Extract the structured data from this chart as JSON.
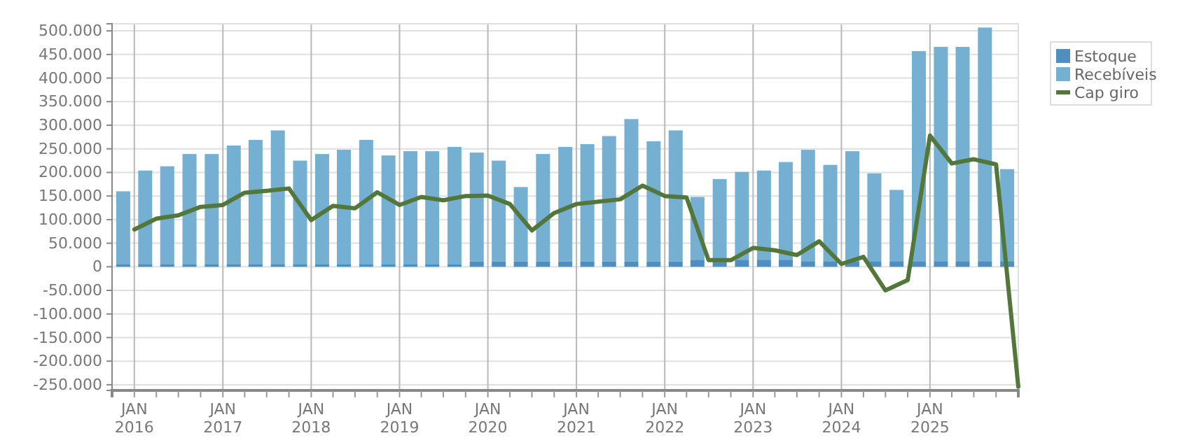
{
  "chart_data": {
    "type": "bar",
    "stacked": true,
    "xlim": [
      "2015-10-01",
      "2026-01-01"
    ],
    "xticks": [
      {
        "value": "2016-01-01",
        "label": "JAN 2016"
      },
      {
        "value": "2016-04-01",
        "label": null
      },
      {
        "value": "2016-07-01",
        "label": null
      },
      {
        "value": "2016-10-01",
        "label": null
      },
      {
        "value": "2017-01-01",
        "label": "JAN 2017"
      },
      {
        "value": "2017-04-01",
        "label": null
      },
      {
        "value": "2017-07-01",
        "label": null
      },
      {
        "value": "2017-10-01",
        "label": null
      },
      {
        "value": "2018-01-01",
        "label": "JAN 2018"
      },
      {
        "value": "2018-04-01",
        "label": null
      },
      {
        "value": "2018-07-01",
        "label": null
      },
      {
        "value": "2018-10-01",
        "label": null
      },
      {
        "value": "2019-01-01",
        "label": "JAN 2019"
      },
      {
        "value": "2019-04-01",
        "label": null
      },
      {
        "value": "2019-07-01",
        "label": null
      },
      {
        "value": "2019-10-01",
        "label": null
      },
      {
        "value": "2020-01-01",
        "label": "JAN 2020"
      },
      {
        "value": "2020-04-01",
        "label": null
      },
      {
        "value": "2020-07-01",
        "label": null
      },
      {
        "value": "2020-10-01",
        "label": null
      },
      {
        "value": "2021-01-01",
        "label": "JAN 2021"
      },
      {
        "value": "2021-04-01",
        "label": null
      },
      {
        "value": "2021-07-01",
        "label": null
      },
      {
        "value": "2021-10-01",
        "label": null
      },
      {
        "value": "2022-01-01",
        "label": "JAN 2022"
      },
      {
        "value": "2022-04-01",
        "label": null
      },
      {
        "value": "2022-07-01",
        "label": null
      },
      {
        "value": "2022-10-01",
        "label": null
      },
      {
        "value": "2023-01-01",
        "label": "JAN 2023"
      },
      {
        "value": "2023-04-01",
        "label": null
      },
      {
        "value": "2023-07-01",
        "label": null
      },
      {
        "value": "2023-10-01",
        "label": null
      },
      {
        "value": "2024-01-01",
        "label": "JAN 2024"
      },
      {
        "value": "2024-04-01",
        "label": null
      },
      {
        "value": "2024-07-01",
        "label": null
      },
      {
        "value": "2024-10-01",
        "label": null
      },
      {
        "value": "2025-01-01",
        "label": "JAN 2025"
      },
      {
        "value": "2025-04-01",
        "label": null
      },
      {
        "value": "2025-07-01",
        "label": null
      },
      {
        "value": "2025-10-01",
        "label": null
      }
    ],
    "ylim": [
      -262000,
      515000
    ],
    "yticks": [
      {
        "value": -250000,
        "label": "-250.000"
      },
      {
        "value": -200000,
        "label": "-200.000"
      },
      {
        "value": -150000,
        "label": "-150.000"
      },
      {
        "value": -100000,
        "label": "-100.000"
      },
      {
        "value": -50000,
        "label": "-50.000"
      },
      {
        "value": 0,
        "label": "0"
      },
      {
        "value": 50000,
        "label": "50.000"
      },
      {
        "value": 100000,
        "label": "100.000"
      },
      {
        "value": 150000,
        "label": "150.000"
      },
      {
        "value": 200000,
        "label": "200.000"
      },
      {
        "value": 250000,
        "label": "250.000"
      },
      {
        "value": 300000,
        "label": "300.000"
      },
      {
        "value": 350000,
        "label": "350.000"
      },
      {
        "value": 400000,
        "label": "400.000"
      },
      {
        "value": 450000,
        "label": "450.000"
      },
      {
        "value": 500000,
        "label": "500.000"
      }
    ],
    "grid": true,
    "legend": "right",
    "series": [
      {
        "name": "Estoque",
        "color": "#4f8fc0",
        "x": [
          "2015-11-16",
          "2016-02-15",
          "2016-05-16",
          "2016-08-16",
          "2016-11-16",
          "2017-02-15",
          "2017-05-16",
          "2017-08-16",
          "2017-11-16",
          "2018-02-15",
          "2018-05-16",
          "2018-08-16",
          "2018-11-16",
          "2019-02-15",
          "2019-05-16",
          "2019-08-16",
          "2019-11-16",
          "2020-02-15",
          "2020-05-16",
          "2020-08-16",
          "2020-11-16",
          "2021-02-15",
          "2021-05-16",
          "2021-08-16",
          "2021-11-16",
          "2022-02-15",
          "2022-05-16",
          "2022-08-16",
          "2022-11-16",
          "2023-02-15",
          "2023-05-16",
          "2023-08-16",
          "2023-11-16",
          "2024-02-15",
          "2024-05-16",
          "2024-08-16",
          "2024-11-16",
          "2025-02-15",
          "2025-05-16",
          "2025-08-16",
          "2025-11-16"
        ],
        "values": [
          6000,
          6000,
          6000,
          6000,
          6000,
          6000,
          6000,
          6000,
          6000,
          6000,
          6000,
          6000,
          6000,
          6000,
          6000,
          6000,
          11000,
          11000,
          11000,
          11000,
          11000,
          11000,
          11000,
          11000,
          11000,
          11000,
          15000,
          15000,
          15000,
          15000,
          15000,
          12000,
          12000,
          12000,
          12000,
          12000,
          12000,
          12000,
          12000,
          12000,
          12000
        ]
      },
      {
        "name": "Recebíveis",
        "color": "#75afd2",
        "x": [
          "2015-11-16",
          "2016-02-15",
          "2016-05-16",
          "2016-08-16",
          "2016-11-16",
          "2017-02-15",
          "2017-05-16",
          "2017-08-16",
          "2017-11-16",
          "2018-02-15",
          "2018-05-16",
          "2018-08-16",
          "2018-11-16",
          "2019-02-15",
          "2019-05-16",
          "2019-08-16",
          "2019-11-16",
          "2020-02-15",
          "2020-05-16",
          "2020-08-16",
          "2020-11-16",
          "2021-02-15",
          "2021-05-16",
          "2021-08-16",
          "2021-11-16",
          "2022-02-15",
          "2022-05-16",
          "2022-08-16",
          "2022-11-16",
          "2023-02-15",
          "2023-05-16",
          "2023-08-16",
          "2023-11-16",
          "2024-02-15",
          "2024-05-16",
          "2024-08-16",
          "2024-11-16",
          "2025-02-15",
          "2025-05-16",
          "2025-08-16",
          "2025-11-16"
        ],
        "values": [
          154000,
          198000,
          207000,
          233000,
          233000,
          251000,
          263000,
          283000,
          219000,
          233000,
          242000,
          263000,
          230000,
          239000,
          239000,
          248000,
          231000,
          214000,
          158000,
          228000,
          243000,
          249000,
          266000,
          302000,
          255000,
          278000,
          133000,
          171000,
          186000,
          189000,
          207000,
          236000,
          204000,
          233000,
          186000,
          151000,
          445000,
          454000,
          454000,
          495000,
          195000
        ]
      },
      {
        "name": "Cap giro",
        "type": "line",
        "color": "#53763a",
        "x": [
          "2016-01-01",
          "2016-04-01",
          "2016-07-01",
          "2016-10-01",
          "2017-01-01",
          "2017-04-01",
          "2017-07-01",
          "2017-10-01",
          "2018-01-01",
          "2018-04-01",
          "2018-07-01",
          "2018-10-01",
          "2019-01-01",
          "2019-04-01",
          "2019-07-01",
          "2019-10-01",
          "2020-01-01",
          "2020-04-01",
          "2020-07-01",
          "2020-10-01",
          "2021-01-01",
          "2021-04-01",
          "2021-07-01",
          "2021-10-01",
          "2022-01-01",
          "2022-04-01",
          "2022-07-01",
          "2022-10-01",
          "2023-01-01",
          "2023-04-01",
          "2023-07-01",
          "2023-10-01",
          "2024-01-01",
          "2024-04-01",
          "2024-07-01",
          "2024-10-01",
          "2025-01-01",
          "2025-04-01",
          "2025-07-01",
          "2025-10-01",
          "2026-01-01"
        ],
        "values": [
          79000,
          102000,
          109000,
          127000,
          131000,
          157000,
          161000,
          166000,
          99000,
          129000,
          124000,
          158000,
          131000,
          148000,
          141000,
          150000,
          151000,
          133000,
          77000,
          114000,
          133000,
          138000,
          143000,
          172000,
          150000,
          147000,
          14000,
          14000,
          40000,
          35000,
          25000,
          54000,
          6000,
          21000,
          -50000,
          -28000,
          278000,
          219000,
          228000,
          217000,
          -254000
        ]
      }
    ]
  }
}
